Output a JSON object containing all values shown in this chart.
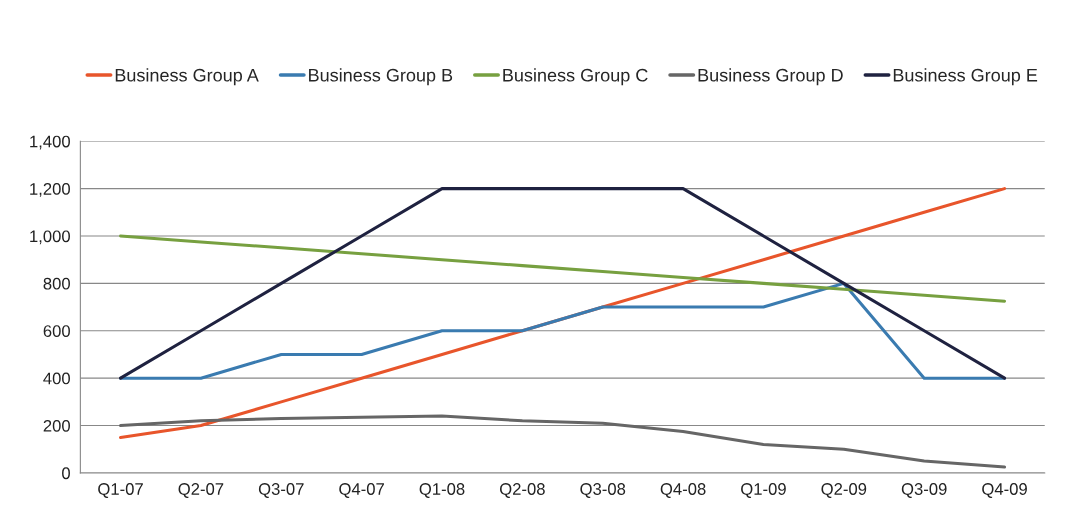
{
  "chart_data": {
    "type": "line",
    "categories": [
      "Q1-07",
      "Q2-07",
      "Q3-07",
      "Q4-07",
      "Q1-08",
      "Q2-08",
      "Q3-08",
      "Q4-08",
      "Q1-09",
      "Q2-09",
      "Q3-09",
      "Q4-09"
    ],
    "series": [
      {
        "name": "Business Group A",
        "color": "#e8552b",
        "values": [
          150,
          200,
          300,
          400,
          500,
          600,
          700,
          800,
          900,
          1000,
          1100,
          1200
        ]
      },
      {
        "name": "Business Group B",
        "color": "#3a7bb0",
        "values": [
          400,
          400,
          500,
          500,
          600,
          600,
          700,
          700,
          700,
          800,
          400,
          400
        ]
      },
      {
        "name": "Business Group C",
        "color": "#77a040",
        "values": [
          1000,
          975,
          950,
          925,
          900,
          875,
          850,
          825,
          800,
          775,
          750,
          725
        ]
      },
      {
        "name": "Business Group D",
        "color": "#666666",
        "values": [
          200,
          220,
          230,
          235,
          240,
          220,
          210,
          175,
          120,
          100,
          50,
          25
        ]
      },
      {
        "name": "Business Group E",
        "color": "#1f2240",
        "values": [
          400,
          600,
          800,
          1000,
          1200,
          1200,
          1200,
          1200,
          1000,
          800,
          600,
          400
        ]
      }
    ],
    "ylim": [
      0,
      1400
    ],
    "yticks": [
      0,
      200,
      400,
      600,
      800,
      {
        "value": 1000,
        "label": "1,000"
      },
      {
        "value": 1200,
        "label": "1,200"
      },
      {
        "value": 1400,
        "label": "1,400"
      }
    ],
    "grid": "y",
    "legend": "top",
    "marker": "none",
    "line_style": "solid"
  }
}
